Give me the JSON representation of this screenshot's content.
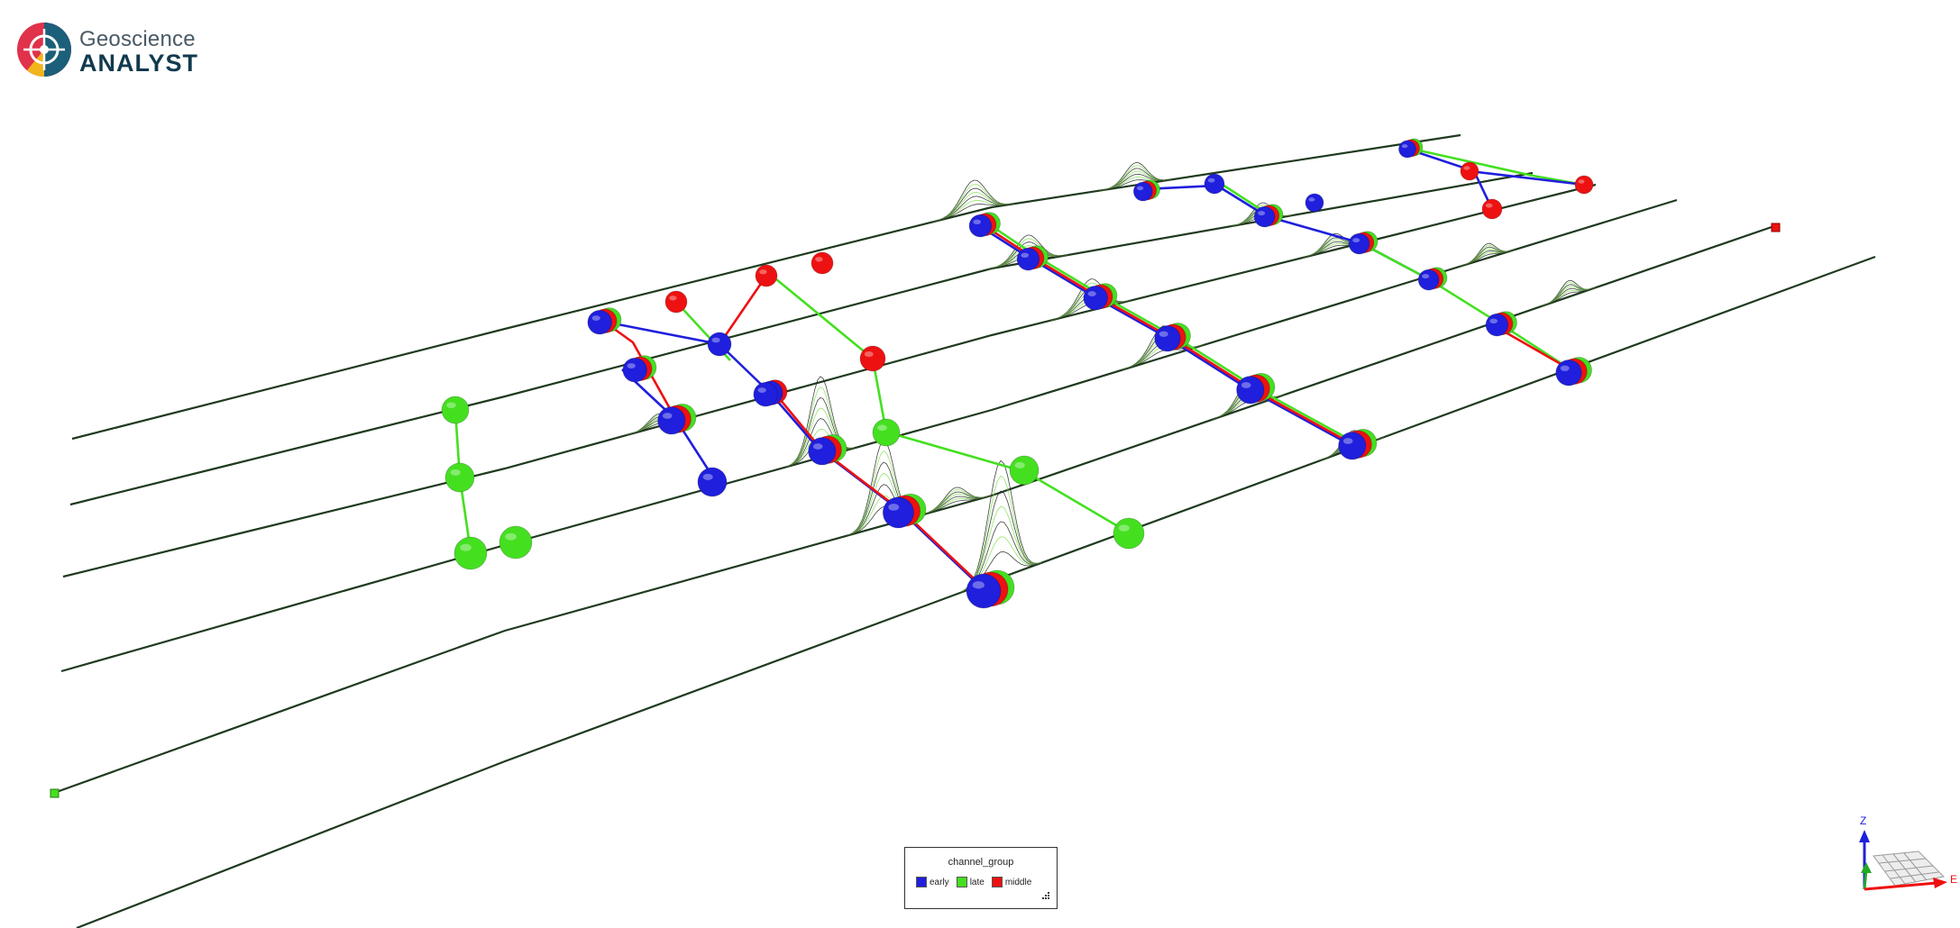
{
  "app": {
    "logo_line1": "Geoscience",
    "logo_line2": "ANALYST"
  },
  "legend": {
    "title": "channel_group",
    "items": [
      {
        "label": "early",
        "color": "#1f1fdd"
      },
      {
        "label": "late",
        "color": "#44e020"
      },
      {
        "label": "middle",
        "color": "#ee1111"
      }
    ]
  },
  "axes": {
    "z_label": "Z",
    "e_label": "E"
  },
  "colors": {
    "early": "#1f1fdd",
    "late": "#44e020",
    "middle": "#ee1111",
    "profile_line": "#1f3a1f",
    "trace_green": "#7fe050",
    "trace_black": "#222222"
  }
}
